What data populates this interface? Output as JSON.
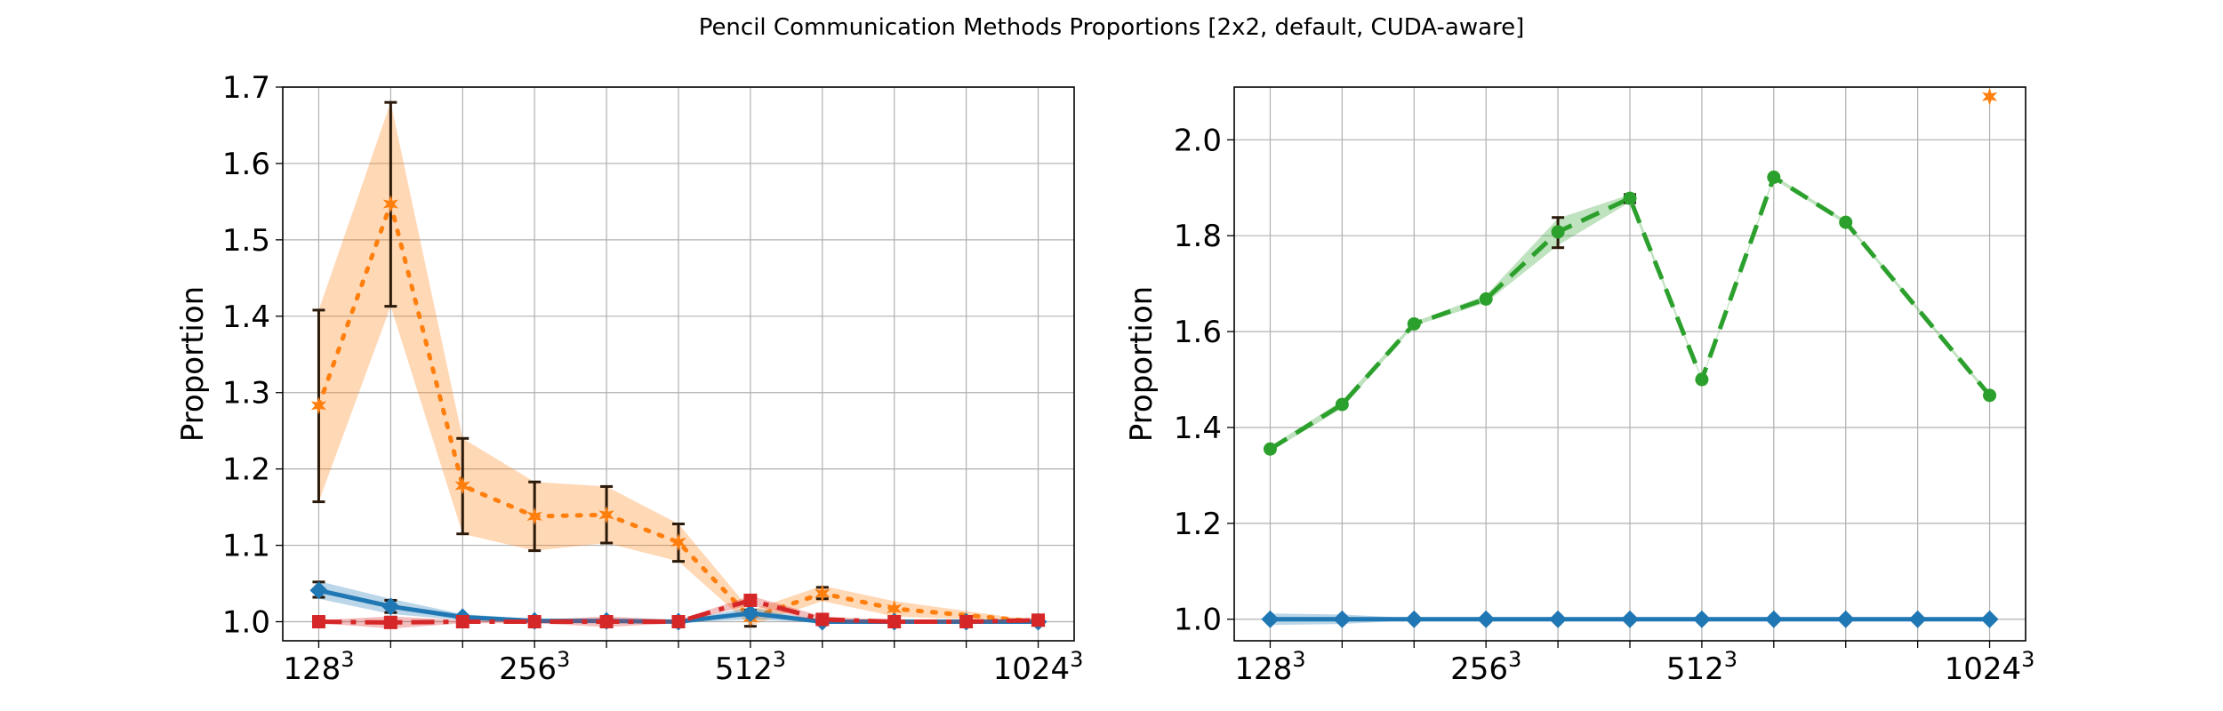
{
  "figure": {
    "title": "Pencil Communication Methods Proportions [2x2, default, CUDA-aware]"
  },
  "chart_data": [
    {
      "type": "line",
      "ylabel": "Proportion",
      "xlabel": "",
      "grid": true,
      "ylim": [
        0.975,
        1.7
      ],
      "xlim": [
        -0.5,
        10.5
      ],
      "x": [
        0,
        1,
        2,
        3,
        4,
        5,
        6,
        7,
        8,
        9,
        10
      ],
      "x_tick_labels": [
        {
          "x": 0,
          "base": "128",
          "exp": "3"
        },
        {
          "x": 3,
          "base": "256",
          "exp": "3"
        },
        {
          "x": 6,
          "base": "512",
          "exp": "3"
        },
        {
          "x": 10,
          "base": "1024",
          "exp": "3"
        }
      ],
      "y_ticks": [
        {
          "value": 1.0,
          "label": "1.0"
        },
        {
          "value": 1.1,
          "label": "1.1"
        },
        {
          "value": 1.2,
          "label": "1.2"
        },
        {
          "value": 1.3,
          "label": "1.3"
        },
        {
          "value": 1.4,
          "label": "1.4"
        },
        {
          "value": 1.5,
          "label": "1.5"
        },
        {
          "value": 1.6,
          "label": "1.6"
        },
        {
          "value": 1.7,
          "label": "1.7"
        }
      ],
      "series": [
        {
          "color": "#ff7f0e",
          "linestyle": "dotted",
          "marker": "star",
          "values": [
            1.283,
            1.547,
            1.178,
            1.138,
            1.14,
            1.104,
            1.005,
            1.037,
            1.017,
            1.0
          ],
          "x": [
            0,
            1,
            2,
            3,
            4,
            5,
            6,
            7,
            8,
            10
          ],
          "band_low": [
            1.157,
            1.413,
            1.115,
            1.093,
            1.103,
            1.079,
            0.995,
            1.027,
            1.007,
            0.999
          ],
          "band_high": [
            1.408,
            1.68,
            1.24,
            1.183,
            1.177,
            1.128,
            1.015,
            1.047,
            1.027,
            1.001
          ],
          "errorbars": [
            {
              "x": 0,
              "low": 1.157,
              "high": 1.408
            },
            {
              "x": 1,
              "low": 1.413,
              "high": 1.68
            },
            {
              "x": 2,
              "low": 1.115,
              "high": 1.24
            },
            {
              "x": 3,
              "low": 1.093,
              "high": 1.183
            },
            {
              "x": 4,
              "low": 1.103,
              "high": 1.177
            },
            {
              "x": 5,
              "low": 1.079,
              "high": 1.128
            },
            {
              "x": 6,
              "low": 0.994,
              "high": 1.015
            },
            {
              "x": 7,
              "low": 1.03,
              "high": 1.045
            }
          ]
        },
        {
          "color": "#1f77b4",
          "linestyle": "solid",
          "marker": "diamond",
          "values": [
            1.041,
            1.02,
            1.006,
            1.001,
            1.001,
            1.0,
            1.011,
            1.0,
            1.0,
            1.0,
            1.0
          ],
          "x": [
            0,
            1,
            2,
            3,
            4,
            5,
            6,
            7,
            8,
            9,
            10
          ],
          "band_low": [
            1.03,
            1.01,
            1.002,
            0.999,
            0.999,
            0.999,
            1.003,
            0.999,
            0.999,
            0.999,
            0.999
          ],
          "band_high": [
            1.053,
            1.03,
            1.01,
            1.003,
            1.003,
            1.001,
            1.019,
            1.001,
            1.001,
            1.001,
            1.001
          ],
          "errorbars": [
            {
              "x": 0,
              "low": 1.032,
              "high": 1.052
            },
            {
              "x": 1,
              "low": 1.012,
              "high": 1.028
            }
          ]
        },
        {
          "color": "#d62728",
          "linestyle": "dashdot",
          "marker": "square",
          "values": [
            1.0,
            0.999,
            1.0,
            1.0,
            1.0,
            1.0,
            1.028,
            1.003,
            1.0,
            1.0,
            1.002
          ],
          "x": [
            0,
            1,
            2,
            3,
            4,
            5,
            6,
            7,
            8,
            9,
            10
          ],
          "band_low": [
            0.998,
            0.991,
            0.998,
            0.998,
            0.993,
            0.998,
            1.022,
            0.999,
            0.998,
            0.998,
            0.999
          ],
          "band_high": [
            1.002,
            1.007,
            1.002,
            1.002,
            1.007,
            1.002,
            1.034,
            1.007,
            1.002,
            1.002,
            1.005
          ],
          "errorbars": [
            {
              "x": 1,
              "low": 0.993,
              "high": 1.006
            }
          ]
        }
      ]
    },
    {
      "type": "line",
      "ylabel": "Proportion",
      "xlabel": "",
      "grid": true,
      "ylim": [
        0.955,
        2.11
      ],
      "xlim": [
        -0.5,
        10.5
      ],
      "x": [
        0,
        1,
        2,
        3,
        4,
        5,
        6,
        7,
        8,
        9,
        10
      ],
      "x_tick_labels": [
        {
          "x": 0,
          "base": "128",
          "exp": "3"
        },
        {
          "x": 3,
          "base": "256",
          "exp": "3"
        },
        {
          "x": 6,
          "base": "512",
          "exp": "3"
        },
        {
          "x": 10,
          "base": "1024",
          "exp": "3"
        }
      ],
      "y_ticks": [
        {
          "value": 1.0,
          "label": "1.0"
        },
        {
          "value": 1.2,
          "label": "1.2"
        },
        {
          "value": 1.4,
          "label": "1.4"
        },
        {
          "value": 1.6,
          "label": "1.6"
        },
        {
          "value": 1.8,
          "label": "1.8"
        },
        {
          "value": 2.0,
          "label": "2.0"
        }
      ],
      "series": [
        {
          "color": "#2ca02c",
          "linestyle": "dashed",
          "marker": "circle",
          "values": [
            1.355,
            1.448,
            1.616,
            1.668,
            1.808,
            1.878,
            1.5,
            1.922,
            1.828,
            1.467
          ],
          "x": [
            0,
            1,
            2,
            3,
            4,
            5,
            6,
            7,
            8,
            10
          ],
          "band_low": [
            1.35,
            1.44,
            1.612,
            1.66,
            1.78,
            1.87,
            1.497,
            1.918,
            1.824,
            1.463
          ],
          "band_high": [
            1.36,
            1.456,
            1.62,
            1.676,
            1.836,
            1.886,
            1.503,
            1.926,
            1.832,
            1.471
          ],
          "errorbars": [
            {
              "x": 4,
              "low": 1.775,
              "high": 1.838
            },
            {
              "x": 5,
              "low": 1.869,
              "high": 1.886
            }
          ]
        },
        {
          "color": "#1f77b4",
          "linestyle": "solid",
          "marker": "diamond",
          "values": [
            1.0,
            1.0,
            1.0,
            1.0,
            1.0,
            1.0,
            1.0,
            1.0,
            1.0,
            1.0,
            1.0
          ],
          "x": [
            0,
            1,
            2,
            3,
            4,
            5,
            6,
            7,
            8,
            9,
            10
          ],
          "band_low": [
            0.988,
            0.99,
            0.998,
            0.999,
            0.999,
            0.999,
            0.996,
            0.999,
            0.999,
            0.999,
            0.999
          ],
          "band_high": [
            1.012,
            1.01,
            1.002,
            1.001,
            1.001,
            1.001,
            1.004,
            1.001,
            1.001,
            1.001,
            1.001
          ],
          "errorbars": []
        },
        {
          "color": "#ff7f0e",
          "linestyle": "none",
          "marker": "star",
          "values": [
            2.09
          ],
          "x": [
            10
          ],
          "band_low": [
            2.085
          ],
          "band_high": [
            2.095
          ],
          "errorbars": []
        }
      ]
    }
  ]
}
